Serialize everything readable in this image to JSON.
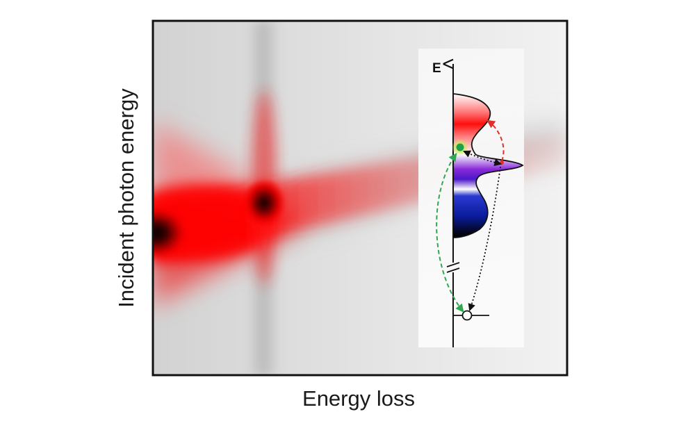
{
  "figure": {
    "xlabel": "Energy loss",
    "ylabel": "Incident photon energy"
  },
  "inset": {
    "energy_axis_label": "E"
  },
  "colors": {
    "map_background": "#e2e2e2",
    "resonance_red": "#ff0000",
    "resonance_core": "#000000",
    "frame": "#111111",
    "arrow_green": "#2fa84f",
    "arrow_red": "#e0302a",
    "arrow_black": "#111111",
    "state_red": "#ff1a1a",
    "state_violet": "#7a1fd0",
    "state_blue": "#0b1fa8",
    "core_hole_glow": "#c9ef5a"
  },
  "icons": {
    "ground_state": "open-circle",
    "excited_electron": "filled-green-dot"
  }
}
